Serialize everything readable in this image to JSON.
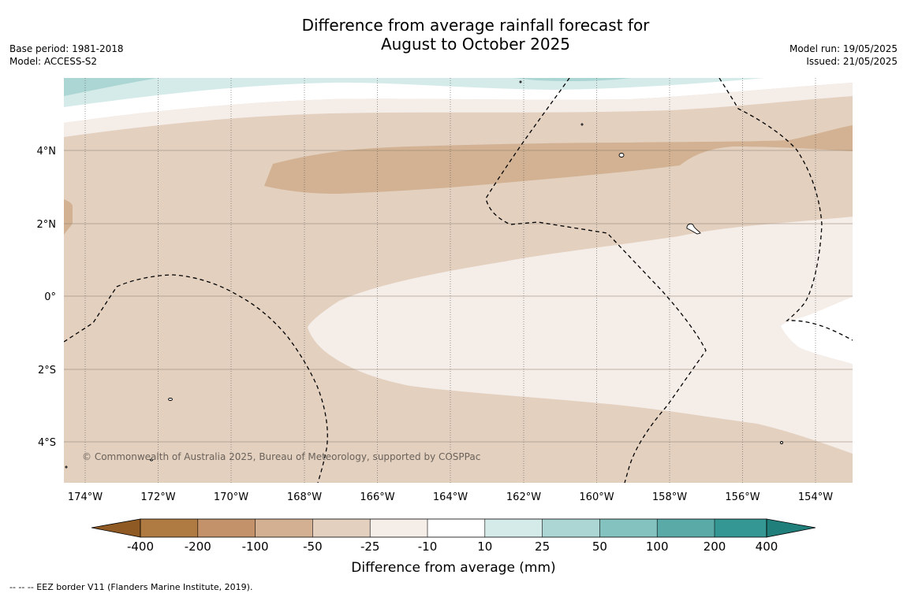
{
  "title_line1": "Difference from average rainfall forecast for",
  "title_line2": "August to October 2025",
  "meta": {
    "base_period": "Base period: 1981-2018",
    "model": "Model: ACCESS-S2",
    "model_run": "Model run: 19/05/2025",
    "issued": "Issued: 21/05/2025"
  },
  "map": {
    "lon_ticks": [
      "174°W",
      "172°W",
      "170°W",
      "168°W",
      "166°W",
      "164°W",
      "162°W",
      "160°W",
      "158°W",
      "156°W",
      "154°W"
    ],
    "lat_ticks": [
      "4°N",
      "2°N",
      "0°",
      "2°S",
      "4°S"
    ],
    "copyright": "© Commonwealth of Australia 2025, Bureau of Meteorology, supported by COSPPac"
  },
  "colorbar": {
    "label": "Difference from average (mm)",
    "ticks": [
      "-400",
      "-200",
      "-100",
      "-50",
      "-25",
      "-10",
      "10",
      "25",
      "50",
      "100",
      "200",
      "400"
    ],
    "colors": [
      "#8f5a24",
      "#b07a43",
      "#c3926a",
      "#d4b092",
      "#e3d0bf",
      "#f5ede8",
      "#ffffff",
      "#d5ebe9",
      "#acd6d4",
      "#84c2bf",
      "#5aaba8",
      "#359793",
      "#207f7b"
    ]
  },
  "footnote": "--  --  -- EEZ border V11 (Flanders Marine Institute, 2019)."
}
